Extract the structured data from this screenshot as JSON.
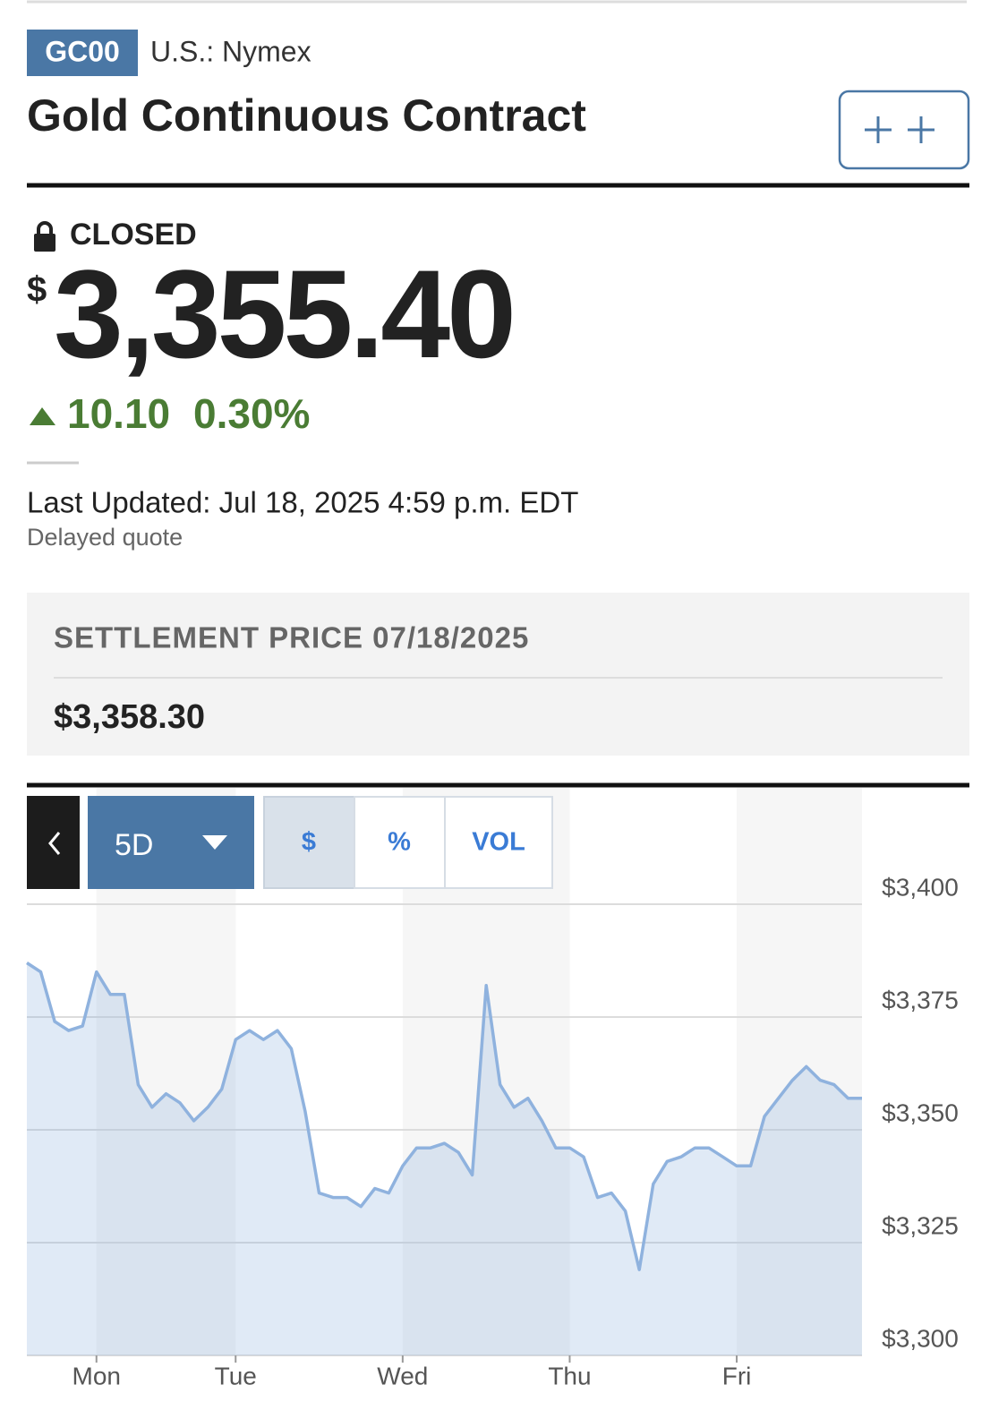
{
  "header": {
    "symbol": "GC00",
    "exchange": "U.S.: Nymex",
    "title": "Gold Continuous Contract"
  },
  "quote": {
    "status": "CLOSED",
    "currency": "$",
    "price": "3,355.40",
    "change": "10.10",
    "change_percent": "0.30%",
    "last_updated": "Last Updated: Jul 18, 2025 4:59 p.m. EDT",
    "delay_note": "Delayed quote"
  },
  "settlement": {
    "label": "SETTLEMENT PRICE 07/18/2025",
    "price": "$3,358.30"
  },
  "chart_controls": {
    "range": "5D",
    "tabs": [
      "$",
      "%",
      "VOL"
    ]
  },
  "chart_data": {
    "type": "line",
    "categories": [
      null,
      null,
      null,
      null,
      null,
      "Mon",
      null,
      null,
      null,
      null,
      null,
      null,
      null,
      null,
      null,
      "Tue",
      null,
      null,
      null,
      null,
      null,
      null,
      null,
      null,
      null,
      null,
      null,
      "Wed",
      null,
      null,
      null,
      null,
      null,
      null,
      null,
      null,
      null,
      null,
      null,
      "Thu",
      null,
      null,
      null,
      null,
      null,
      null,
      null,
      null,
      null,
      null,
      null,
      "Fri",
      null,
      null,
      null,
      null,
      null,
      null,
      null,
      null,
      null
    ],
    "values": [
      3387,
      3385,
      3374,
      3372,
      3373,
      3385,
      3380,
      3380,
      3360,
      3355,
      3358,
      3356,
      3352,
      3355,
      3359,
      3370,
      3372,
      3370,
      3372,
      3368,
      3354,
      3336,
      3335,
      3335,
      3333,
      3337,
      3336,
      3342,
      3346,
      3346,
      3347,
      3345,
      3340,
      3382,
      3360,
      3355,
      3357,
      3352,
      3346,
      3346,
      3344,
      3335,
      3336,
      3332,
      3319,
      3338,
      3343,
      3344,
      3346,
      3346,
      3344,
      3342,
      3342,
      3353,
      3357,
      3361,
      3364,
      3361,
      3360,
      3357,
      3357
    ],
    "color": "#8fb2de",
    "ylim": [
      3300,
      3400
    ],
    "yticks": [
      {
        "value": 3300,
        "label": "$3,300"
      },
      {
        "value": 3325,
        "label": "$3,325"
      },
      {
        "value": 3350,
        "label": "$3,350"
      },
      {
        "value": 3375,
        "label": "$3,375"
      },
      {
        "value": 3400,
        "label": "$3,400"
      }
    ],
    "grid": true
  }
}
